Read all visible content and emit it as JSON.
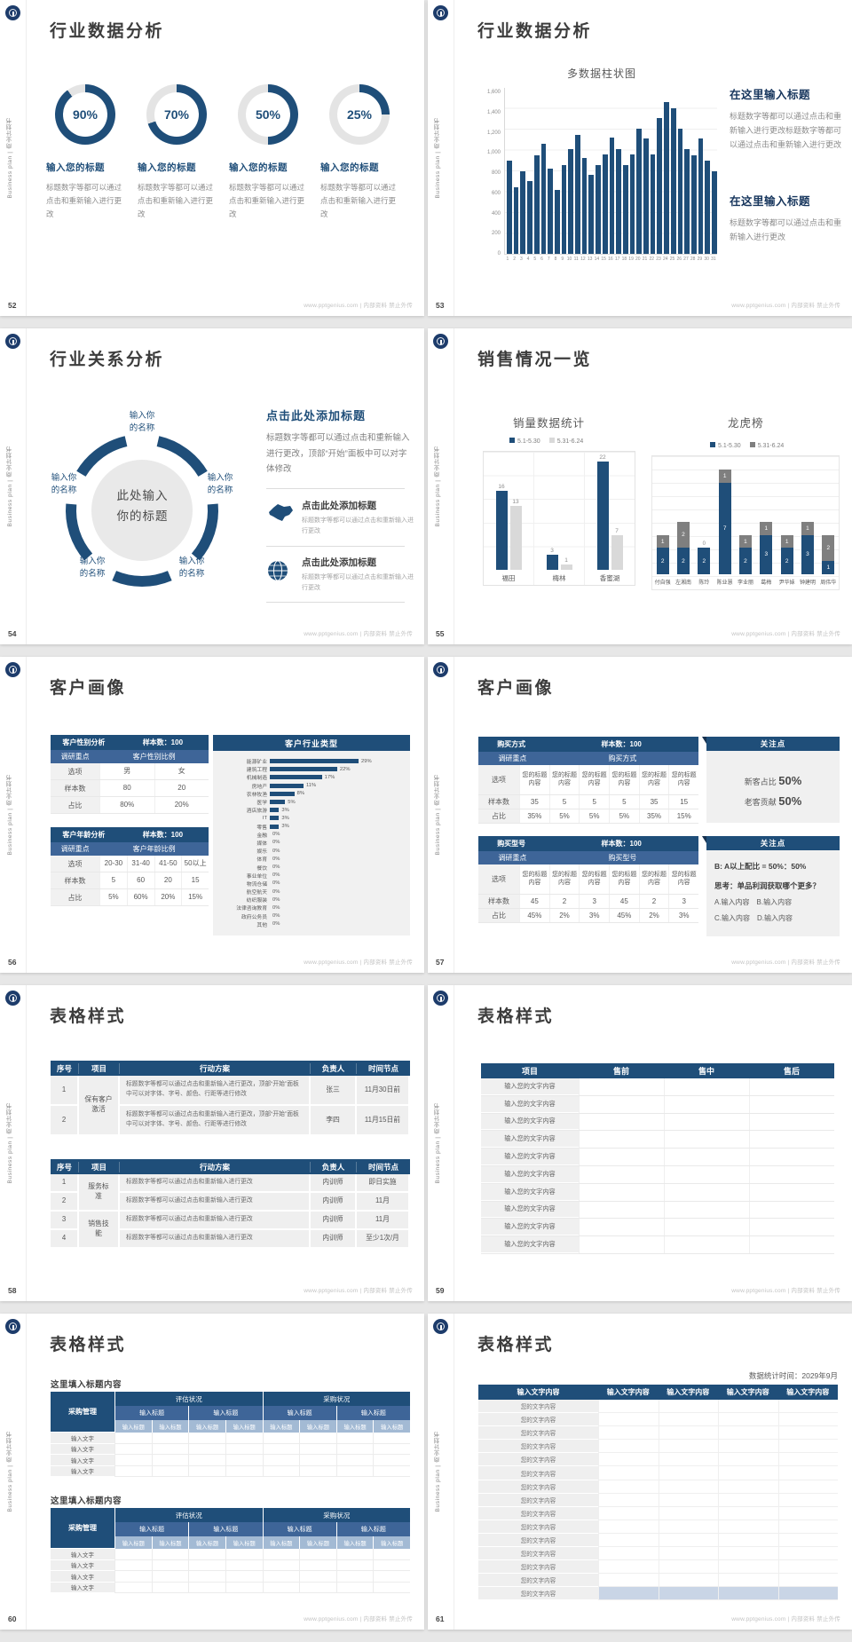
{
  "colors": {
    "navy": "#1f4e79",
    "navy_dark": "#17365d",
    "mid_blue": "#3e6598",
    "light_hdr": "#a3bad4",
    "gray_bar": "#d9d9d9",
    "dark_gray_bar": "#7f7f7f",
    "track": "#e4e4e4",
    "highlight": "#c9d5e6"
  },
  "footer": {
    "url_label": "www.pptgenius.com | 内部资料 禁止外传"
  },
  "side_text": "Business plan | 商业计划书",
  "slides": [
    {
      "num": "52",
      "title": "行业数据分析",
      "item_title": "输入您的标题",
      "item_body": "标题数字等都可以通过点击和重新输入进行更改",
      "donuts": [
        {
          "pct": 90,
          "label": "90%"
        },
        {
          "pct": 70,
          "label": "70%"
        },
        {
          "pct": 50,
          "label": "50%"
        },
        {
          "pct": 25,
          "label": "25%"
        }
      ]
    },
    {
      "num": "53",
      "title": "行业数据分析",
      "chart": {
        "type": "bar",
        "title": "多数据柱状图",
        "max": 1600,
        "yticks": [
          "1,600",
          "1,400",
          "1,200",
          "1,000",
          "800",
          "600",
          "400",
          "200",
          "0"
        ],
        "xlabels": [
          "1",
          "2",
          "3",
          "4",
          "5",
          "6",
          "7",
          "8",
          "9",
          "10",
          "11",
          "12",
          "13",
          "14",
          "15",
          "16",
          "17",
          "18",
          "19",
          "20",
          "21",
          "22",
          "23",
          "24",
          "25",
          "26",
          "27",
          "28",
          "29",
          "30",
          "31"
        ],
        "values": [
          900,
          640,
          800,
          700,
          950,
          1060,
          820,
          620,
          860,
          1010,
          1150,
          920,
          760,
          860,
          960,
          1120,
          1010,
          860,
          960,
          1210,
          1110,
          960,
          1310,
          1460,
          1400,
          1210,
          1010,
          950,
          1110,
          900,
          800
        ]
      },
      "blocks": [
        {
          "h": "在这里输入标题",
          "b": "标题数字等都可以通过点击和重新输入进行更改标题数字等都可以通过点击和重新输入进行更改"
        },
        {
          "h": "在这里输入标题",
          "b": "标题数字等都可以通过点击和重新输入进行更改"
        }
      ]
    },
    {
      "num": "54",
      "title": "行业关系分析",
      "center_l1": "此处输入",
      "center_l2": "你的标题",
      "spoke_l1": "输入你",
      "spoke_l2": "的名称",
      "main_h": "点击此处添加标题",
      "main_b": "标题数字等都可以通过点击和重新输入进行更改，顶部“开始”面板中可以对字体修改",
      "items": [
        {
          "h": "点击此处添加标题",
          "b": "标题数字等都可以通过点击和重新输入进行更改"
        },
        {
          "h": "点击此处添加标题",
          "b": "标题数字等都可以通过点击和重新输入进行更改"
        }
      ]
    },
    {
      "num": "55",
      "title": "销售情况一览",
      "left_chart": {
        "type": "grouped-bar",
        "title": "销量数据统计",
        "legend": [
          "5.1-5.30",
          "5.31-6.24"
        ],
        "max": 24,
        "categories": [
          "福田",
          "梅林",
          "香蜜湖"
        ],
        "s1": [
          16,
          3,
          22
        ],
        "s2": [
          13,
          1,
          7
        ]
      },
      "right_chart": {
        "type": "stacked-bar",
        "title": "龙虎榜",
        "legend": [
          "5.1-5.30",
          "5.31-6.24"
        ],
        "max": 9,
        "categories": [
          "付自强",
          "左湘南",
          "陈玲",
          "陈业慧",
          "李业丽",
          "葛梅",
          "尹华妹",
          "钟建明",
          "周伟华"
        ],
        "blue": [
          2,
          2,
          2,
          7,
          2,
          3,
          2,
          3,
          1
        ],
        "gray": [
          1,
          2,
          0,
          1,
          1,
          1,
          1,
          1,
          2
        ]
      }
    },
    {
      "num": "56",
      "title": "客户画像",
      "tableA": {
        "name": "客户性别分析",
        "sample": "样本数：100",
        "focus": "调研重点",
        "focus_val": "客户性别比例",
        "rows": [
          [
            "选项",
            "男",
            "女"
          ],
          [
            "样本数",
            "80",
            "20"
          ],
          [
            "占比",
            "80%",
            "20%"
          ]
        ]
      },
      "tableB": {
        "name": "客户年龄分析",
        "sample": "样本数：100",
        "focus": "调研重点",
        "focus_val": "客户年龄比例",
        "rows": [
          [
            "选项",
            "20-30",
            "31-40",
            "41-50",
            "50以上"
          ],
          [
            "样本数",
            "5",
            "60",
            "20",
            "15"
          ],
          [
            "占比",
            "5%",
            "60%",
            "20%",
            "15%"
          ]
        ]
      },
      "hbar": {
        "type": "hbar",
        "title": "客户行业类型",
        "max": 29,
        "items": [
          {
            "label": "能源矿业",
            "v": 29,
            "pct": "29%"
          },
          {
            "label": "建筑工程",
            "v": 22,
            "pct": "22%"
          },
          {
            "label": "机械制造",
            "v": 17,
            "pct": "17%"
          },
          {
            "label": "房地产",
            "v": 11,
            "pct": "11%"
          },
          {
            "label": "农林牧渔",
            "v": 8,
            "pct": "8%"
          },
          {
            "label": "医学",
            "v": 5,
            "pct": "5%"
          },
          {
            "label": "酒店旅游",
            "v": 3,
            "pct": "3%"
          },
          {
            "label": "IT",
            "v": 3,
            "pct": "3%"
          },
          {
            "label": "零售",
            "v": 3,
            "pct": "3%"
          },
          {
            "label": "金融",
            "v": 0,
            "pct": "0%"
          },
          {
            "label": "媒体",
            "v": 0,
            "pct": "0%"
          },
          {
            "label": "娱乐",
            "v": 0,
            "pct": "0%"
          },
          {
            "label": "体育",
            "v": 0,
            "pct": "0%"
          },
          {
            "label": "餐饮",
            "v": 0,
            "pct": "0%"
          },
          {
            "label": "事业单位",
            "v": 0,
            "pct": "0%"
          },
          {
            "label": "物流仓储",
            "v": 0,
            "pct": "0%"
          },
          {
            "label": "航空航天",
            "v": 0,
            "pct": "0%"
          },
          {
            "label": "纺织服装",
            "v": 0,
            "pct": "0%"
          },
          {
            "label": "法律咨询教育",
            "v": 0,
            "pct": "0%"
          },
          {
            "label": "政府公务员",
            "v": 0,
            "pct": "0%"
          },
          {
            "label": "其他",
            "v": 0,
            "pct": "0%"
          }
        ]
      }
    },
    {
      "num": "57",
      "title": "客户画像",
      "tableA": {
        "name": "购买方式",
        "sample": "样本数：100",
        "focus": "调研重点",
        "focus_val": "购买方式",
        "row_labels": [
          "选项",
          "样本数",
          "占比"
        ],
        "opts": [
          "您的标题内容",
          "您的标题内容",
          "您的标题内容",
          "您的标题内容",
          "您的标题内容",
          "您的标题内容"
        ],
        "samples": [
          "35",
          "5",
          "5",
          "5",
          "35",
          "15"
        ],
        "pcts": [
          "35%",
          "5%",
          "5%",
          "5%",
          "35%",
          "15%"
        ]
      },
      "panelA": {
        "h": "关注点",
        "line1_pre": "新客占比",
        "line1_big": "50%",
        "line2_pre": "老客贡献",
        "line2_big": "50%"
      },
      "tableB": {
        "name": "购买型号",
        "sample": "样本数：100",
        "focus": "调研重点",
        "focus_val": "购买型号",
        "row_labels": [
          "选项",
          "样本数",
          "占比"
        ],
        "opts": [
          "您的标题内容",
          "您的标题内容",
          "您的标题内容",
          "您的标题内容",
          "您的标题内容",
          "您的标题内容"
        ],
        "samples": [
          "45",
          "2",
          "3",
          "45",
          "2",
          "3"
        ],
        "pcts": [
          "45%",
          "2%",
          "3%",
          "45%",
          "2%",
          "3%"
        ]
      },
      "panelB": {
        "h": "关注点",
        "l1": "B: A以上配比 = 50%：50%",
        "l2": "思考：单品利润获取哪个更多？",
        "l3": "A.输入内容　B.输入内容",
        "l4": "C.输入内容　D.输入内容"
      }
    },
    {
      "num": "58",
      "title": "表格样式",
      "headers": [
        "序号",
        "项目",
        "行动方案",
        "负责人",
        "时间节点"
      ],
      "t1": {
        "proj": "保有客户激活",
        "rows": [
          {
            "no": "1",
            "plan": "标题数字等都可以通过点击和重新输入进行更改，顶部“开始”面板中可以对字体、字号、颜色、行距等进行修改",
            "owner": "张三",
            "time": "11月30日前"
          },
          {
            "no": "2",
            "plan": "标题数字等都可以通过点击和重新输入进行更改，顶部“开始”面板中可以对字体、字号、颜色、行距等进行修改",
            "owner": "李四",
            "time": "11月15日前"
          }
        ]
      },
      "t2": {
        "projA": "服务标准",
        "projB": "销售技能",
        "rows": [
          {
            "no": "1",
            "plan": "标题数字等都可以通过点击和重新输入进行更改",
            "owner": "内训师",
            "time": "即日实施"
          },
          {
            "no": "2",
            "plan": "标题数字等都可以通过点击和重新输入进行更改",
            "owner": "内训师",
            "time": "11月"
          },
          {
            "no": "3",
            "plan": "标题数字等都可以通过点击和重新输入进行更改",
            "owner": "内训师",
            "time": "11月"
          },
          {
            "no": "4",
            "plan": "标题数字等都可以通过点击和重新输入进行更改",
            "owner": "内训师",
            "time": "至少1次/月"
          }
        ]
      }
    },
    {
      "num": "59",
      "title": "表格样式",
      "headers": [
        "项目",
        "售前",
        "售中",
        "售后"
      ],
      "rows": [
        "输入您的文字内容",
        "输入您的文字内容",
        "输入您的文字内容",
        "输入您的文字内容",
        "输入您的文字内容",
        "输入您的文字内容",
        "输入您的文字内容",
        "输入您的文字内容",
        "输入您的文字内容",
        "输入您的文字内容"
      ]
    },
    {
      "num": "60",
      "title": "表格样式",
      "section_label": "这里填入标题内容",
      "corner": "采购管理",
      "groups": [
        "评估状况",
        "采购状况"
      ],
      "mids": [
        "输入标题",
        "输入标题",
        "输入标题",
        "输入标题"
      ],
      "subs": [
        "输入标题",
        "输入标题",
        "输入标题",
        "输入标题",
        "输入标题",
        "输入标题",
        "输入标题",
        "输入标题"
      ],
      "rows": [
        "输入文字",
        "输入文字",
        "输入文字",
        "输入文字"
      ]
    },
    {
      "num": "61",
      "title": "表格样式",
      "caption": "数据统计时间：2029年9月",
      "headers": [
        "输入文字内容",
        "输入文字内容",
        "输入文字内容",
        "输入文字内容",
        "输入文字内容"
      ],
      "rows": [
        "您的文字内容",
        "您的文字内容",
        "您的文字内容",
        "您的文字内容",
        "您的文字内容",
        "您的文字内容",
        "您的文字内容",
        "您的文字内容",
        "您的文字内容",
        "您的文字内容",
        "您的文字内容",
        "您的文字内容",
        "您的文字内容",
        "您的文字内容",
        "您的文字内容"
      ]
    }
  ]
}
